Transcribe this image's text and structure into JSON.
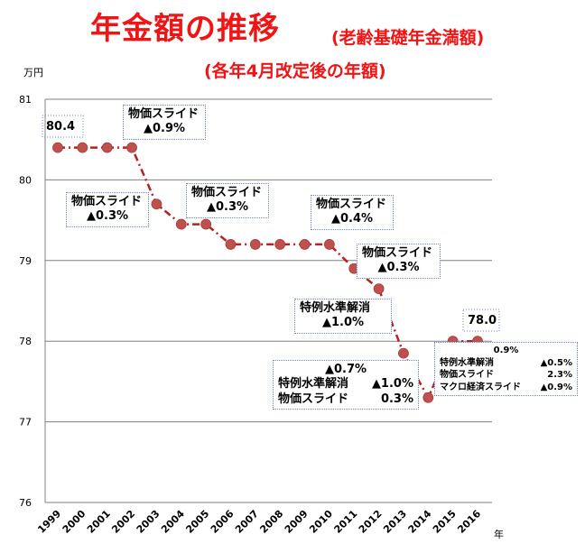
{
  "title": "年金額の推移",
  "subtitle_parenthetical": "(老齢基礎年金満額)",
  "subtitle_second": "(各年4月改定後の年額)",
  "unit_y": "万円",
  "unit_x": "年",
  "colors": {
    "title": "#f01414",
    "line": "#b22222",
    "marker": "#c0504d",
    "gridline": "#808080",
    "callout_border": "#6e86c9"
  },
  "chart_data": {
    "type": "line",
    "x": [
      "1999",
      "2000",
      "2001",
      "2002",
      "2003",
      "2004",
      "2005",
      "2006",
      "2007",
      "2008",
      "2009",
      "2010",
      "2011",
      "2012",
      "2013",
      "2014",
      "2015",
      "2016"
    ],
    "series": [
      {
        "values": [
          80.4,
          80.4,
          80.4,
          80.4,
          79.7,
          79.45,
          79.45,
          79.2,
          79.2,
          79.2,
          79.2,
          79.2,
          78.9,
          78.65,
          77.85,
          77.3,
          78.0,
          78.0
        ]
      }
    ],
    "ylim": [
      76,
      81
    ],
    "yticks": [
      76,
      77,
      78,
      79,
      80,
      81
    ],
    "grid": true,
    "line_style": "dashed",
    "point_labels": {
      "first": "80.4",
      "last": "78.0"
    }
  },
  "callouts": {
    "c2002": {
      "line1": "物価スライド",
      "line2": "▲0.9%"
    },
    "c2003": {
      "line1": "物価スライド",
      "line2": "▲0.3%"
    },
    "c2005": {
      "line1": "物価スライド",
      "line2": "▲0.3%"
    },
    "c2010": {
      "line1": "物価スライド",
      "line2": "▲0.4%"
    },
    "c2012": {
      "line1": "物価スライド",
      "line2": "▲0.3%"
    },
    "c2013": {
      "line1": "特例水準解消",
      "line2": "▲1.0%"
    },
    "c2014": {
      "line1": "▲0.7%",
      "row2_label": "特例水準解消",
      "row2_value": "▲1.0%",
      "row3_label": "物価スライド",
      "row3_value": "0.3%"
    },
    "c2015": {
      "line1": "0.9%",
      "row2_label": "特例水準解消",
      "row2_value": "▲0.5%",
      "row3_label": "物価スライド",
      "row3_value": "2.3%",
      "row4_label": "マクロ経済スライド",
      "row4_value": "▲0.9%"
    }
  }
}
